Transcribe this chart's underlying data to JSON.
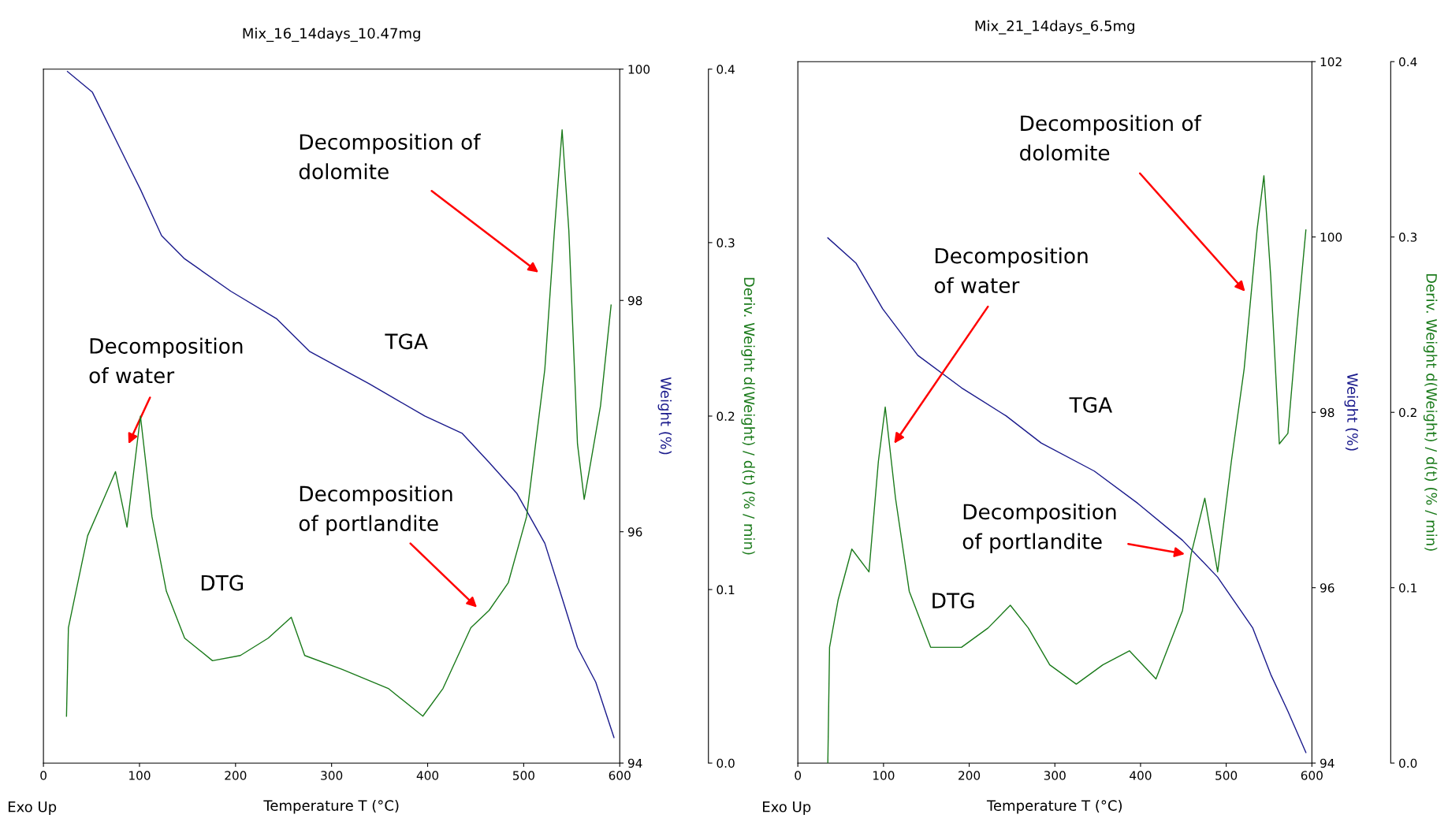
{
  "chart_data": [
    {
      "type": "line",
      "title": "Mix_16_14days_10.47mg",
      "xlabel": "Temperature T (°C)",
      "ylabel": "Weight (%)",
      "y2label": "Deriv. Weight d(Weight) / d(t) (% / min)",
      "xlim": [
        0,
        600
      ],
      "xticks": [
        0,
        100,
        200,
        300,
        400,
        500,
        600
      ],
      "ylim": [
        94,
        100
      ],
      "yticks": [
        94,
        96,
        98,
        100
      ],
      "y2lim": [
        0,
        0.4
      ],
      "y2ticks": [
        {
          "value": 0,
          "label": "0.0"
        },
        0.1,
        0.2,
        0.3,
        0.4
      ],
      "grid": false,
      "legend": false,
      "series": [
        {
          "color": "#1a1a8c",
          "x": [
            25,
            51,
            89,
            101,
            123,
            147,
            195,
            243,
            277,
            339,
            397,
            436,
            464,
            493,
            522,
            541,
            556,
            575,
            594
          ],
          "values": [
            99.98,
            99.8,
            99.16,
            98.96,
            98.56,
            98.36,
            98.08,
            97.84,
            97.56,
            97.28,
            97.0,
            96.85,
            96.6,
            96.33,
            95.9,
            95.4,
            95.0,
            94.7,
            94.22
          ]
        },
        {
          "color": "#1a7a1a",
          "axis": "y2",
          "x": [
            24,
            26,
            32,
            46,
            61,
            75,
            87,
            101,
            113,
            128,
            147,
            176,
            205,
            234,
            258,
            272,
            311,
            359,
            395,
            416,
            445,
            464,
            484,
            503,
            522,
            532,
            540,
            547,
            556,
            563,
            570,
            580,
            591
          ],
          "values": [
            0.027,
            0.078,
            0.094,
            0.131,
            0.15,
            0.168,
            0.136,
            0.2,
            0.142,
            0.099,
            0.072,
            0.059,
            0.062,
            0.072,
            0.084,
            0.062,
            0.054,
            0.043,
            0.027,
            0.043,
            0.078,
            0.088,
            0.104,
            0.142,
            0.227,
            0.307,
            0.365,
            0.307,
            0.184,
            0.152,
            0.174,
            0.206,
            0.264
          ]
        }
      ],
      "annotations": [
        "Decomposition\nof water",
        "Decomposition of\ndolomite",
        "Decomposition\nof portlandite",
        "TGA",
        "DTG",
        "Exo Up"
      ]
    },
    {
      "type": "line",
      "title": "Mix_21_14days_6.5mg",
      "xlabel": "Temperature T (°C)",
      "ylabel": "Weight (%)",
      "y2label": "Deriv. Weight d(Weight) / d(t) (% / min)",
      "xlim": [
        0,
        600
      ],
      "xticks": [
        0,
        100,
        200,
        300,
        400,
        500,
        600
      ],
      "ylim": [
        94,
        102
      ],
      "yticks": [
        94,
        96,
        98,
        100,
        102
      ],
      "y2lim": [
        0,
        0.4
      ],
      "y2ticks": [
        {
          "value": 0,
          "label": "0.0"
        },
        0.1,
        0.2,
        0.3,
        0.4
      ],
      "grid": false,
      "legend": false,
      "series": [
        {
          "color": "#1a1a8c",
          "x": [
            35,
            68,
            99,
            140,
            191,
            243,
            284,
            346,
            397,
            449,
            490,
            531,
            552,
            572,
            593
          ],
          "values": [
            99.99,
            99.7,
            99.18,
            98.65,
            98.28,
            97.96,
            97.65,
            97.33,
            96.96,
            96.54,
            96.12,
            95.54,
            95.01,
            94.59,
            94.12
          ]
        },
        {
          "color": "#1a7a1a",
          "axis": "y2",
          "x": [
            35,
            37,
            47,
            63,
            83,
            94,
            102,
            114,
            130,
            155,
            191,
            222,
            248,
            269,
            294,
            325,
            356,
            387,
            418,
            449,
            459,
            475,
            490,
            506,
            521,
            536,
            544,
            552,
            562,
            572,
            583,
            593
          ],
          "values": [
            0.0,
            0.066,
            0.093,
            0.122,
            0.109,
            0.172,
            0.203,
            0.151,
            0.098,
            0.066,
            0.066,
            0.077,
            0.09,
            0.077,
            0.056,
            0.045,
            0.056,
            0.064,
            0.048,
            0.087,
            0.119,
            0.151,
            0.109,
            0.172,
            0.225,
            0.304,
            0.335,
            0.277,
            0.182,
            0.188,
            0.251,
            0.304
          ]
        }
      ],
      "annotations": [
        "Decomposition\nof water",
        "Decomposition of\ndolomite",
        "Decomposition\nof portlandite",
        "TGA",
        "DTG",
        "Exo Up"
      ]
    }
  ]
}
